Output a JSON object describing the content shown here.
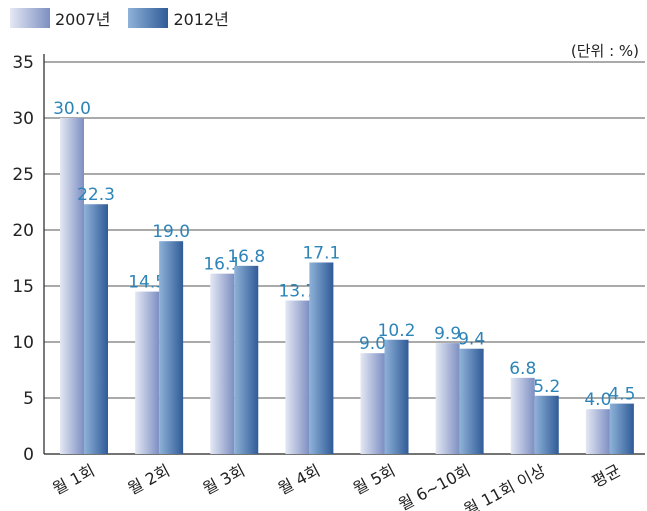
{
  "chart_data": {
    "type": "bar",
    "unit": "(단위 : %)",
    "categories": [
      "월 1회",
      "월 2회",
      "월 3회",
      "월 4회",
      "월 5회",
      "월 6~10회",
      "월 11회 이상",
      "평균"
    ],
    "series": [
      {
        "name": "2007년",
        "values": [
          30.0,
          14.5,
          16.1,
          13.7,
          9.0,
          9.9,
          6.8,
          4.0
        ]
      },
      {
        "name": "2012년",
        "values": [
          22.3,
          19.0,
          16.8,
          17.1,
          10.2,
          9.4,
          5.2,
          4.5
        ]
      }
    ],
    "value_labels": [
      [
        "30.0",
        "14.5",
        "16.1",
        "13.7",
        "9.0",
        "9.9",
        "6.8",
        "4.0"
      ],
      [
        "22.3",
        "19.0",
        "16.8",
        "17.1",
        "10.2",
        "9.4",
        "5.2",
        "4.5"
      ]
    ],
    "y_ticks": [
      0,
      5,
      10,
      15,
      20,
      25,
      30,
      35
    ],
    "ylim": [
      0,
      35
    ],
    "grid": true,
    "legend_position": "top-left",
    "colors": {
      "series1_light": "#e4e8f4",
      "series1_dark": "#7d8fc2",
      "series2_light": "#8fb2d8",
      "series2_dark": "#2f5b97",
      "value_label": "#2d84b8",
      "grid": "#555555",
      "axis": "#222222"
    }
  }
}
